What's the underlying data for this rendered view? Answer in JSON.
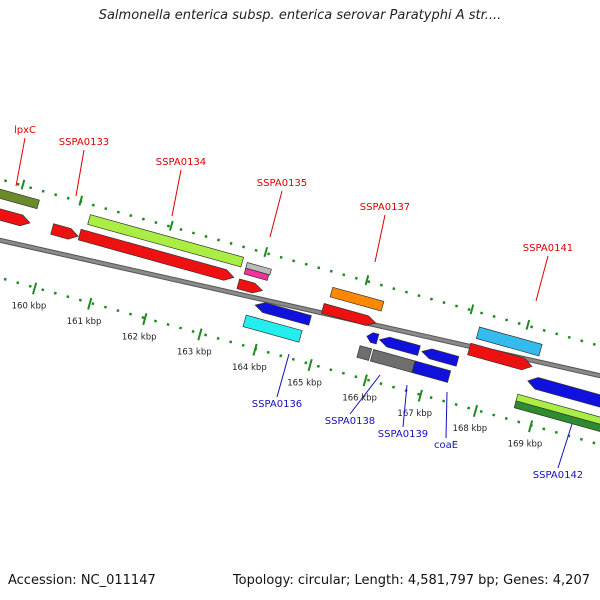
{
  "title": "Salmonella enterica subsp. enterica serovar Paratyphi A str....",
  "footer": {
    "accession": "Accession: NC_011147",
    "summary": "Topology: circular; Length: 4,581,797 bp; Genes: 4,207"
  },
  "colors": {
    "backbone": "#8a8a8a",
    "tick": "#1f8a1f",
    "top_label": "#dd0000",
    "bottom_label": "#1111bb",
    "red": "#ee1111",
    "olive": "#6b8a2a",
    "lime": "#aaee44",
    "orange": "#ff8800",
    "skyblue": "#33bbee",
    "blue": "#1111dd",
    "cyan": "#22eeee",
    "gray": "#6e6e6e",
    "pink": "#ee3399",
    "silver": "#bbbbbb",
    "green": "#2e8b2e"
  },
  "kbp_ticks": [
    {
      "kbp": 160,
      "label": "160 kbp"
    },
    {
      "kbp": 161,
      "label": "161 kbp"
    },
    {
      "kbp": 162,
      "label": "162 kbp"
    },
    {
      "kbp": 163,
      "label": "163 kbp"
    },
    {
      "kbp": 164,
      "label": "164 kbp"
    },
    {
      "kbp": 165,
      "label": "165 kbp"
    },
    {
      "kbp": 166,
      "label": "166 kbp"
    },
    {
      "kbp": 167,
      "label": "167 kbp"
    },
    {
      "kbp": 168,
      "label": "168 kbp"
    },
    {
      "kbp": 169,
      "label": "169 kbp"
    }
  ],
  "gene_labels_top": [
    {
      "name": "lpxC"
    },
    {
      "name": "SSPA0133"
    },
    {
      "name": "SSPA0134"
    },
    {
      "name": "SSPA0135"
    },
    {
      "name": "SSPA0137"
    },
    {
      "name": "SSPA0141"
    }
  ],
  "gene_labels_bottom": [
    {
      "name": "SSPA0136"
    },
    {
      "name": "SSPA0138"
    },
    {
      "name": "SSPA0139"
    },
    {
      "name": "coaE"
    },
    {
      "name": "SSPA0142"
    }
  ]
}
